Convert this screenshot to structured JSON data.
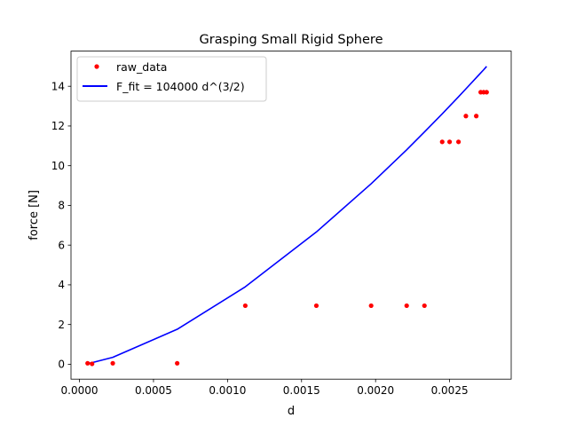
{
  "chart_data": {
    "type": "scatter",
    "title": "Grasping Small Rigid Sphere",
    "xlabel": "d",
    "ylabel": "force [N]",
    "xlim": [
      -5.72e-05,
      0.002916
    ],
    "ylim": [
      -0.75,
      15.77
    ],
    "xticks": [
      {
        "value": 0.0,
        "label": "0.0000"
      },
      {
        "value": 0.0005,
        "label": "0.0005"
      },
      {
        "value": 0.001,
        "label": "0.0010"
      },
      {
        "value": 0.0015,
        "label": "0.0015"
      },
      {
        "value": 0.002,
        "label": "0.0020"
      },
      {
        "value": 0.0025,
        "label": "0.0025"
      }
    ],
    "yticks": [
      {
        "value": 0,
        "label": "0"
      },
      {
        "value": 2,
        "label": "2"
      },
      {
        "value": 4,
        "label": "4"
      },
      {
        "value": 6,
        "label": "6"
      },
      {
        "value": 8,
        "label": "8"
      },
      {
        "value": 10,
        "label": "10"
      },
      {
        "value": 12,
        "label": "12"
      },
      {
        "value": 14,
        "label": "14"
      }
    ],
    "grid": false,
    "legend_position": "upper-left",
    "series": [
      {
        "name": "raw_data",
        "style": "markers",
        "color": "#ff0000",
        "points": [
          {
            "x": 5.5e-05,
            "y": 0.05
          },
          {
            "x": 8.5e-05,
            "y": 0.02
          },
          {
            "x": 0.000225,
            "y": 0.05
          },
          {
            "x": 0.00066,
            "y": 0.05
          },
          {
            "x": 0.00112,
            "y": 2.95
          },
          {
            "x": 0.0016,
            "y": 2.95
          },
          {
            "x": 0.00197,
            "y": 2.95
          },
          {
            "x": 0.00221,
            "y": 2.95
          },
          {
            "x": 0.00233,
            "y": 2.95
          },
          {
            "x": 0.00245,
            "y": 11.2
          },
          {
            "x": 0.0025,
            "y": 11.2
          },
          {
            "x": 0.00256,
            "y": 11.2
          },
          {
            "x": 0.00261,
            "y": 12.5
          },
          {
            "x": 0.00268,
            "y": 12.5
          },
          {
            "x": 0.00271,
            "y": 13.7
          },
          {
            "x": 0.00273,
            "y": 13.7
          },
          {
            "x": 0.00275,
            "y": 13.7
          }
        ]
      },
      {
        "name": "F_fit = 104000 d^(3/2)",
        "style": "line",
        "color": "#0000ff",
        "points": [
          {
            "x": 5.5e-05,
            "y": 0.04
          },
          {
            "x": 8.5e-05,
            "y": 0.08
          },
          {
            "x": 0.000225,
            "y": 0.35
          },
          {
            "x": 0.00066,
            "y": 1.76
          },
          {
            "x": 0.00112,
            "y": 3.9
          },
          {
            "x": 0.0016,
            "y": 6.66
          },
          {
            "x": 0.00197,
            "y": 9.09
          },
          {
            "x": 0.00221,
            "y": 10.8
          },
          {
            "x": 0.00233,
            "y": 11.7
          },
          {
            "x": 0.00245,
            "y": 12.61
          },
          {
            "x": 0.0025,
            "y": 13.0
          },
          {
            "x": 0.00256,
            "y": 13.47
          },
          {
            "x": 0.00261,
            "y": 13.87
          },
          {
            "x": 0.00268,
            "y": 14.43
          },
          {
            "x": 0.00271,
            "y": 14.67
          },
          {
            "x": 0.00273,
            "y": 14.83
          },
          {
            "x": 0.00275,
            "y": 15.0
          }
        ]
      }
    ]
  }
}
